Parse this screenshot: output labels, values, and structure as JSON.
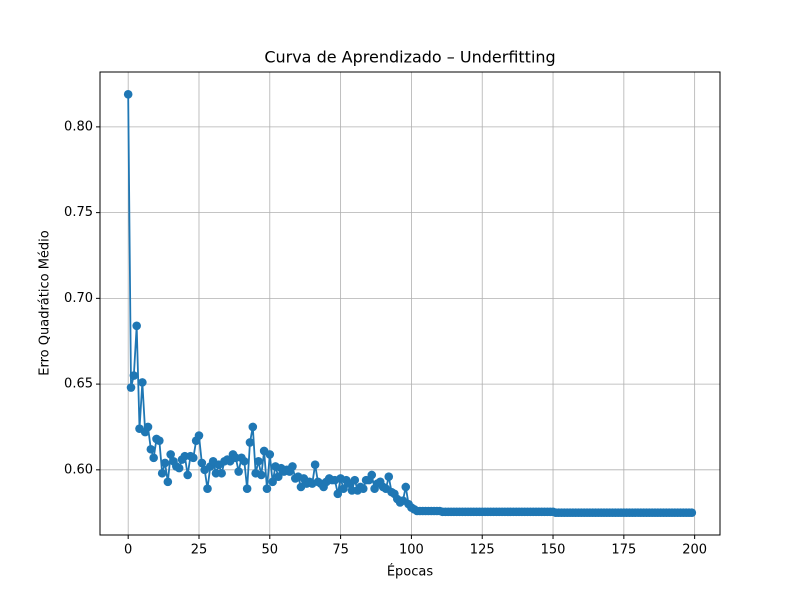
{
  "chart_data": {
    "type": "line",
    "title": "Curva de Aprendizado – Underfitting",
    "xlabel": "Épocas",
    "ylabel": "Erro Quadrático Médio",
    "xlim": [
      -9.95,
      208.95
    ],
    "ylim": [
      0.562,
      0.832
    ],
    "xticks": [
      0,
      25,
      50,
      75,
      100,
      125,
      150,
      175,
      200
    ],
    "yticks": [
      {
        "value": 0.6,
        "label": "0.60"
      },
      {
        "value": 0.65,
        "label": "0.65"
      },
      {
        "value": 0.7,
        "label": "0.70"
      },
      {
        "value": 0.75,
        "label": "0.75"
      },
      {
        "value": 0.8,
        "label": "0.80"
      }
    ],
    "grid": true,
    "x": [
      0,
      1,
      2,
      3,
      4,
      5,
      6,
      7,
      8,
      9,
      10,
      11,
      12,
      13,
      14,
      15,
      16,
      17,
      18,
      19,
      20,
      21,
      22,
      23,
      24,
      25,
      26,
      27,
      28,
      29,
      30,
      31,
      32,
      33,
      34,
      35,
      36,
      37,
      38,
      39,
      40,
      41,
      42,
      43,
      44,
      45,
      46,
      47,
      48,
      49,
      50,
      51,
      52,
      53,
      54,
      55,
      56,
      57,
      58,
      59,
      60,
      61,
      62,
      63,
      64,
      65,
      66,
      67,
      68,
      69,
      70,
      71,
      72,
      73,
      74,
      75,
      76,
      77,
      78,
      79,
      80,
      81,
      82,
      83,
      84,
      85,
      86,
      87,
      88,
      89,
      90,
      91,
      92,
      93,
      94,
      95,
      96,
      97,
      98,
      99,
      100,
      101,
      102,
      103,
      104,
      105,
      106,
      107,
      108,
      109,
      110,
      111,
      112,
      113,
      114,
      115,
      116,
      117,
      118,
      119,
      120,
      121,
      122,
      123,
      124,
      125,
      126,
      127,
      128,
      129,
      130,
      131,
      132,
      133,
      134,
      135,
      136,
      137,
      138,
      139,
      140,
      141,
      142,
      143,
      144,
      145,
      146,
      147,
      148,
      149,
      150,
      151,
      152,
      153,
      154,
      155,
      156,
      157,
      158,
      159,
      160,
      161,
      162,
      163,
      164,
      165,
      166,
      167,
      168,
      169,
      170,
      171,
      172,
      173,
      174,
      175,
      176,
      177,
      178,
      179,
      180,
      181,
      182,
      183,
      184,
      185,
      186,
      187,
      188,
      189,
      190,
      191,
      192,
      193,
      194,
      195,
      196,
      197,
      198,
      199
    ],
    "series": [
      {
        "color": "#1f77b4",
        "values": [
          0.819,
          0.648,
          0.655,
          0.684,
          0.624,
          0.651,
          0.622,
          0.625,
          0.612,
          0.607,
          0.618,
          0.617,
          0.598,
          0.604,
          0.593,
          0.609,
          0.605,
          0.602,
          0.601,
          0.606,
          0.608,
          0.597,
          0.608,
          0.607,
          0.617,
          0.62,
          0.604,
          0.6,
          0.589,
          0.602,
          0.605,
          0.598,
          0.603,
          0.598,
          0.605,
          0.606,
          0.605,
          0.609,
          0.607,
          0.599,
          0.607,
          0.605,
          0.589,
          0.616,
          0.625,
          0.598,
          0.605,
          0.597,
          0.611,
          0.589,
          0.609,
          0.593,
          0.602,
          0.596,
          0.601,
          0.599,
          0.6,
          0.599,
          0.602,
          0.595,
          0.596,
          0.59,
          0.595,
          0.592,
          0.593,
          0.592,
          0.603,
          0.593,
          0.592,
          0.59,
          0.593,
          0.595,
          0.594,
          0.594,
          0.586,
          0.595,
          0.589,
          0.594,
          0.592,
          0.588,
          0.594,
          0.588,
          0.59,
          0.589,
          0.594,
          0.594,
          0.597,
          0.589,
          0.592,
          0.593,
          0.59,
          0.589,
          0.596,
          0.587,
          0.586,
          0.583,
          0.581,
          0.582,
          0.59,
          0.58,
          0.578,
          0.577,
          0.576,
          0.576,
          0.576,
          0.576,
          0.576,
          0.576,
          0.576,
          0.576,
          0.576,
          0.5755,
          0.5755,
          0.5755,
          0.5755,
          0.5755,
          0.5755,
          0.5755,
          0.5755,
          0.5755,
          0.5755,
          0.5755,
          0.5755,
          0.5755,
          0.5755,
          0.5755,
          0.5755,
          0.5755,
          0.5755,
          0.5755,
          0.5755,
          0.5755,
          0.5755,
          0.5755,
          0.5755,
          0.5755,
          0.5755,
          0.5755,
          0.5755,
          0.5755,
          0.5755,
          0.5755,
          0.5755,
          0.5755,
          0.5755,
          0.5755,
          0.5755,
          0.5755,
          0.5755,
          0.5755,
          0.5755,
          0.575,
          0.575,
          0.575,
          0.575,
          0.575,
          0.575,
          0.575,
          0.575,
          0.575,
          0.575,
          0.575,
          0.575,
          0.575,
          0.575,
          0.575,
          0.575,
          0.575,
          0.575,
          0.575,
          0.575,
          0.575,
          0.575,
          0.575,
          0.575,
          0.575,
          0.575,
          0.575,
          0.575,
          0.575,
          0.575,
          0.575,
          0.575,
          0.575,
          0.575,
          0.575,
          0.575,
          0.575,
          0.575,
          0.575,
          0.575,
          0.575,
          0.575,
          0.575,
          0.575,
          0.575,
          0.575,
          0.575,
          0.575,
          0.575
        ]
      }
    ]
  }
}
